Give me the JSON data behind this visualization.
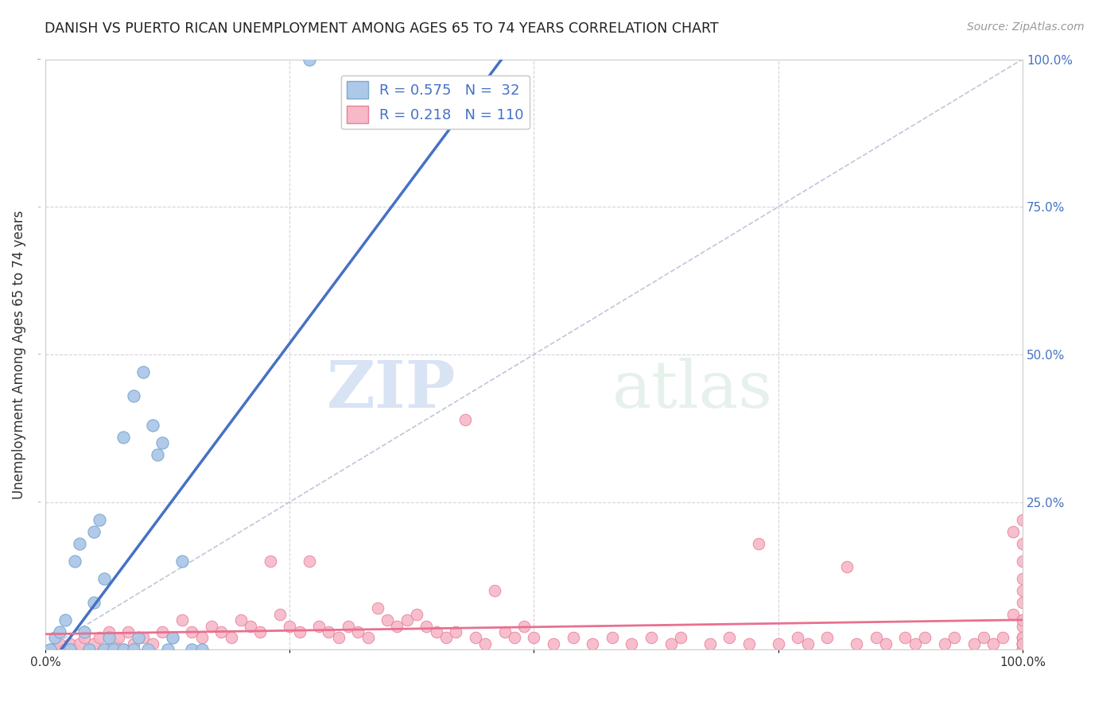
{
  "title": "DANISH VS PUERTO RICAN UNEMPLOYMENT AMONG AGES 65 TO 74 YEARS CORRELATION CHART",
  "source_text": "Source: ZipAtlas.com",
  "ylabel": "Unemployment Among Ages 65 to 74 years",
  "xlim": [
    0.0,
    1.0
  ],
  "ylim": [
    0.0,
    1.0
  ],
  "xticks": [
    0.0,
    0.25,
    0.5,
    0.75,
    1.0
  ],
  "yticks": [
    0.0,
    0.25,
    0.5,
    0.75,
    1.0
  ],
  "watermark_zip": "ZIP",
  "watermark_atlas": "atlas",
  "danes_color": "#adc8e8",
  "danes_edge_color": "#7aaad0",
  "pr_color": "#f7b8c8",
  "pr_edge_color": "#e8809a",
  "danes_R": 0.575,
  "danes_N": 32,
  "pr_R": 0.218,
  "pr_N": 110,
  "danes_line_color": "#4472c4",
  "pr_line_color": "#e87090",
  "diagonal_color": "#b0b8d0",
  "grid_color": "#d0d0d8",
  "title_color": "#222222",
  "label_color": "#4472c4",
  "danes_x": [
    0.005,
    0.01,
    0.015,
    0.02,
    0.025,
    0.03,
    0.035,
    0.04,
    0.045,
    0.05,
    0.055,
    0.06,
    0.065,
    0.07,
    0.08,
    0.09,
    0.095,
    0.1,
    0.105,
    0.11,
    0.115,
    0.12,
    0.125,
    0.13,
    0.14,
    0.15,
    0.16,
    0.27,
    0.05,
    0.06,
    0.08,
    0.09
  ],
  "danes_y": [
    0.0,
    0.02,
    0.03,
    0.05,
    0.0,
    0.15,
    0.18,
    0.03,
    0.0,
    0.2,
    0.22,
    0.0,
    0.02,
    0.0,
    0.36,
    0.43,
    0.02,
    0.47,
    0.0,
    0.38,
    0.33,
    0.35,
    0.0,
    0.02,
    0.15,
    0.0,
    0.0,
    1.0,
    0.08,
    0.12,
    0.0,
    0.0
  ],
  "pr_x": [
    0.005,
    0.01,
    0.015,
    0.02,
    0.025,
    0.03,
    0.035,
    0.04,
    0.045,
    0.05,
    0.055,
    0.06,
    0.065,
    0.07,
    0.075,
    0.08,
    0.085,
    0.09,
    0.1,
    0.11,
    0.12,
    0.13,
    0.14,
    0.15,
    0.16,
    0.17,
    0.18,
    0.19,
    0.2,
    0.21,
    0.22,
    0.23,
    0.24,
    0.25,
    0.26,
    0.27,
    0.28,
    0.29,
    0.3,
    0.31,
    0.32,
    0.33,
    0.34,
    0.35,
    0.36,
    0.37,
    0.38,
    0.39,
    0.4,
    0.41,
    0.42,
    0.43,
    0.44,
    0.45,
    0.46,
    0.47,
    0.48,
    0.49,
    0.5,
    0.52,
    0.54,
    0.56,
    0.58,
    0.6,
    0.62,
    0.64,
    0.65,
    0.68,
    0.7,
    0.72,
    0.73,
    0.75,
    0.77,
    0.78,
    0.8,
    0.82,
    0.83,
    0.85,
    0.86,
    0.88,
    0.89,
    0.9,
    0.92,
    0.93,
    0.95,
    0.96,
    0.97,
    0.98,
    0.99,
    0.99,
    1.0,
    1.0,
    1.0,
    1.0,
    1.0,
    1.0,
    1.0,
    1.0,
    1.0,
    1.0,
    1.0,
    1.0,
    1.0,
    1.0,
    1.0,
    1.0,
    1.0,
    1.0,
    1.0,
    1.0
  ],
  "pr_y": [
    0.0,
    0.0,
    0.01,
    0.0,
    0.01,
    0.0,
    0.01,
    0.02,
    0.0,
    0.01,
    0.02,
    0.0,
    0.03,
    0.01,
    0.02,
    0.0,
    0.03,
    0.01,
    0.02,
    0.01,
    0.03,
    0.02,
    0.05,
    0.03,
    0.02,
    0.04,
    0.03,
    0.02,
    0.05,
    0.04,
    0.03,
    0.15,
    0.06,
    0.04,
    0.03,
    0.15,
    0.04,
    0.03,
    0.02,
    0.04,
    0.03,
    0.02,
    0.07,
    0.05,
    0.04,
    0.05,
    0.06,
    0.04,
    0.03,
    0.02,
    0.03,
    0.39,
    0.02,
    0.01,
    0.1,
    0.03,
    0.02,
    0.04,
    0.02,
    0.01,
    0.02,
    0.01,
    0.02,
    0.01,
    0.02,
    0.01,
    0.02,
    0.01,
    0.02,
    0.01,
    0.18,
    0.01,
    0.02,
    0.01,
    0.02,
    0.14,
    0.01,
    0.02,
    0.01,
    0.02,
    0.01,
    0.02,
    0.01,
    0.02,
    0.01,
    0.02,
    0.01,
    0.02,
    0.06,
    0.2,
    0.01,
    0.05,
    0.1,
    0.18,
    0.22,
    0.04,
    0.08,
    0.12,
    0.15,
    0.02,
    0.01,
    0.05,
    0.0,
    0.01,
    0.02,
    0.0,
    0.01,
    0.02,
    0.0,
    0.01
  ]
}
